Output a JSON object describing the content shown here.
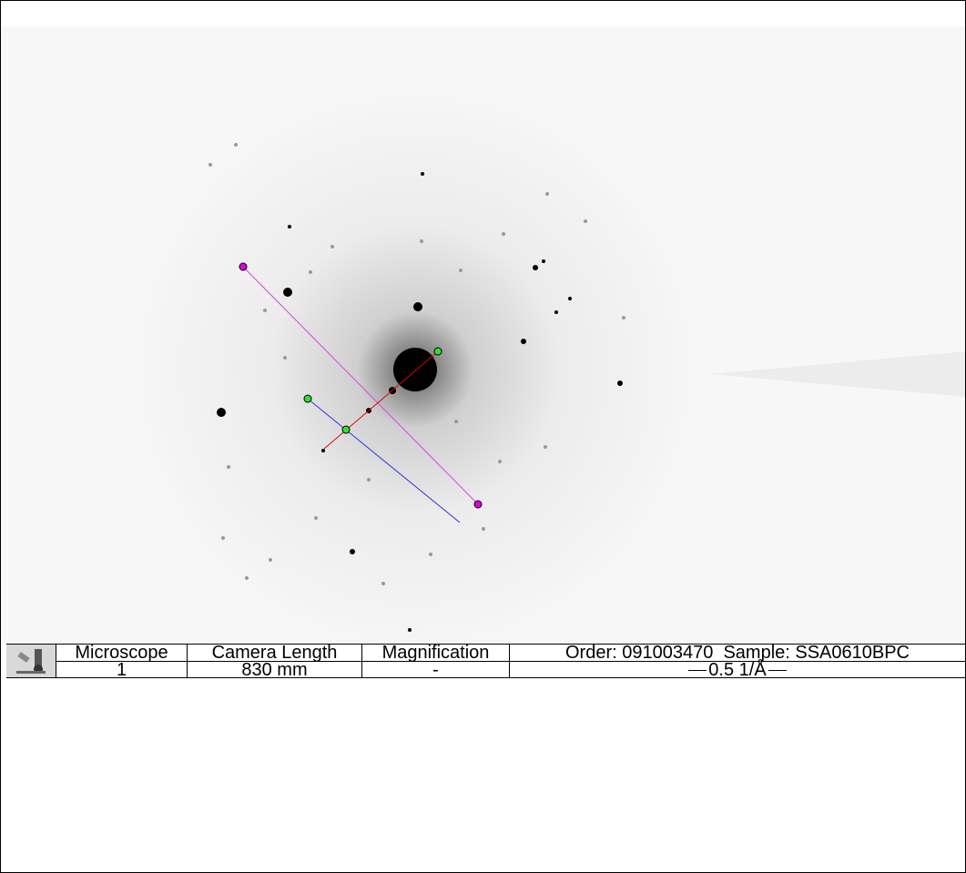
{
  "info_bar": {
    "columns": [
      {
        "header": "Microscope",
        "value": "1"
      },
      {
        "header": "Camera Length",
        "value": "830 mm"
      },
      {
        "header": "Magnification",
        "value": "-"
      }
    ],
    "order_sample": "Order: 091003470  Sample: SSA0610BPC",
    "scale_bar": "0.5 1/Å"
  }
}
